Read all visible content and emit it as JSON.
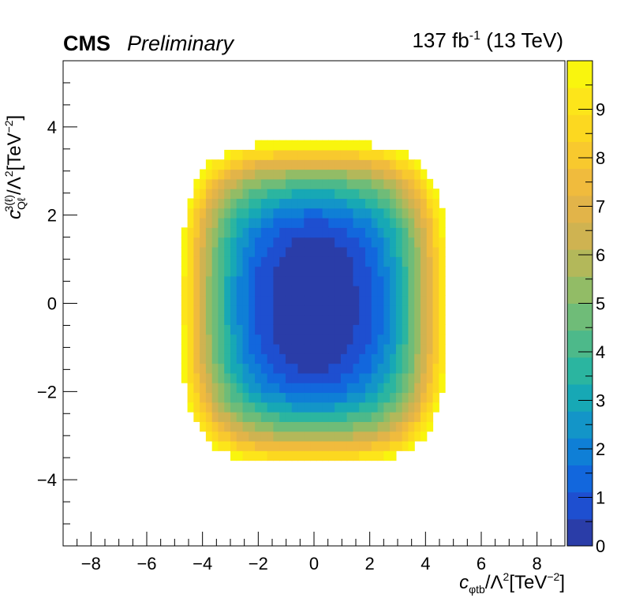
{
  "header": {
    "experiment": "CMS",
    "status": "Preliminary",
    "lumi_value": "137 fb",
    "lumi_exp": "-1",
    "energy": " (13 TeV)"
  },
  "axes": {
    "x_symbol": "c",
    "x_sub": "φtb",
    "x_rest": "/Λ",
    "x_exp": "2",
    "x_unit": "[TeV",
    "x_unit_exp": "−2",
    "x_close": "]",
    "y_symbol": "c",
    "y_sup": "3(ℓ)",
    "y_sub": "Qℓ",
    "y_rest": "/Λ",
    "y_exp": "2",
    "y_unit": "[TeV",
    "y_unit_exp": "−2",
    "y_close": "]"
  },
  "chart_data": {
    "type": "heatmap",
    "x_range": [
      -9,
      9
    ],
    "y_range": [
      -5.5,
      5.5
    ],
    "x_ticks": [
      -8,
      -6,
      -4,
      -2,
      0,
      2,
      4,
      6,
      8
    ],
    "y_ticks": [
      -4,
      -2,
      0,
      2,
      4
    ],
    "z_range": [
      0,
      10
    ],
    "z_ticks": [
      0,
      1,
      2,
      3,
      4,
      5,
      6,
      7,
      8,
      9
    ],
    "bin_width": 0.22,
    "bin_height": 0.22,
    "contour_model": {
      "description": "Δ(-2 lnL) surface, displayed up to 10",
      "center": [
        0,
        0
      ],
      "flat_minimum_halfwidth_x": 1.1,
      "flat_minimum_halfwidth_y": 1.3,
      "outer_halfwidth_x": 4.8,
      "outer_halfwidth_y_at_x0": 3.65,
      "outer_halfwidth_y_at_x4.8": 1.6
    },
    "palette": [
      "#2a3da8",
      "#1e4fd0",
      "#1267dd",
      "#0f7fd6",
      "#1395c8",
      "#17a8b5",
      "#2bb5a0",
      "#4db98a",
      "#6fbc78",
      "#92bc66",
      "#b3b85a",
      "#cfb351",
      "#e2b449",
      "#f0bb3d",
      "#f8c92e",
      "#fcd820",
      "#fde51a",
      "#f9f50e"
    ]
  }
}
